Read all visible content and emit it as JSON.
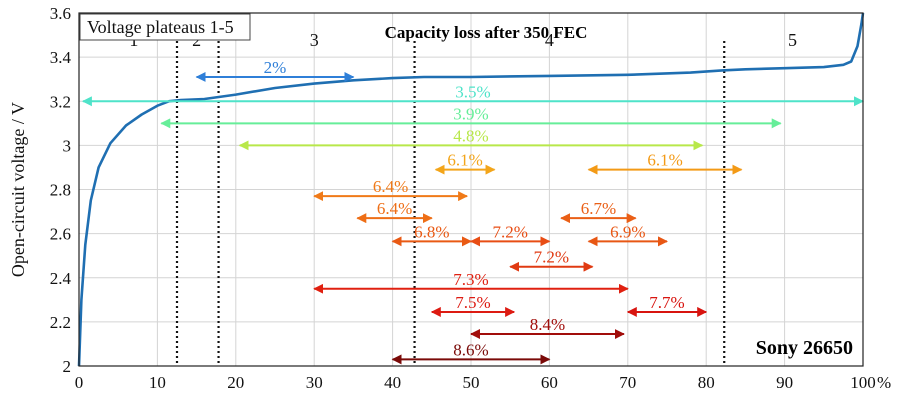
{
  "chart_data": {
    "type": "line",
    "title": "Capacity loss after 350 FEC",
    "ylabel": "Open-circuit voltage / V",
    "x_unit_label": "%",
    "xlim": [
      0,
      100
    ],
    "ylim": [
      2.0,
      3.6
    ],
    "grid": true,
    "x_ticks": [
      "0",
      "10",
      "20",
      "30",
      "40",
      "50",
      "60",
      "70",
      "80",
      "90",
      "100"
    ],
    "y_ticks": [
      "2",
      "2.2",
      "2.4",
      "2.6",
      "2.8",
      "3",
      "3.2",
      "3.4",
      "3.6"
    ],
    "legend_box_text": "Voltage plateaus 1-5",
    "annotation": "Sony 26650",
    "curve_color": "#1f6fb2",
    "curve": {
      "x": [
        0,
        0.3,
        0.8,
        1.5,
        2.5,
        4,
        6,
        8,
        10,
        11.5,
        13,
        16,
        20,
        25,
        30,
        35,
        40,
        44,
        50,
        60,
        70,
        78,
        82,
        85,
        90,
        95,
        97.5,
        98.5,
        99.3,
        99.8,
        100
      ],
      "y": [
        2.0,
        2.3,
        2.55,
        2.75,
        2.9,
        3.01,
        3.09,
        3.14,
        3.18,
        3.2,
        3.205,
        3.21,
        3.23,
        3.26,
        3.28,
        3.295,
        3.305,
        3.31,
        3.31,
        3.315,
        3.32,
        3.33,
        3.34,
        3.345,
        3.35,
        3.355,
        3.365,
        3.38,
        3.45,
        3.55,
        3.6
      ]
    },
    "plateau_boundaries": [
      12.5,
      17.8,
      42.8,
      82.3
    ],
    "plateau_labels": [
      {
        "label": "1",
        "x": 7,
        "y": 3.45
      },
      {
        "label": "2",
        "x": 15,
        "y": 3.45
      },
      {
        "label": "3",
        "x": 30,
        "y": 3.45
      },
      {
        "label": "4",
        "x": 60,
        "y": 3.45
      },
      {
        "label": "5",
        "x": 91,
        "y": 3.45
      }
    ],
    "capacity_loss_arrows": [
      {
        "label": "2%",
        "x1": 15,
        "x2": 35,
        "y": 3.31,
        "color": "#2f7fd8"
      },
      {
        "label": "3.5%",
        "x1": 0.5,
        "x2": 100,
        "y": 3.2,
        "color": "#4fe3c9"
      },
      {
        "label": "3.9%",
        "x1": 10.5,
        "x2": 89.5,
        "y": 3.1,
        "color": "#66ee99"
      },
      {
        "label": "4.8%",
        "x1": 20.5,
        "x2": 79.5,
        "y": 3.0,
        "color": "#b8e84a"
      },
      {
        "label": "6.1%",
        "x1": 45.5,
        "x2": 53,
        "y": 2.89,
        "color": "#f3a51a"
      },
      {
        "label": "6.1%",
        "x1": 65,
        "x2": 84.5,
        "y": 2.89,
        "color": "#f39a16"
      },
      {
        "label": "6.4%",
        "x1": 30,
        "x2": 49.5,
        "y": 2.77,
        "color": "#f07a18"
      },
      {
        "label": "6.4%",
        "x1": 35.5,
        "x2": 45,
        "y": 2.67,
        "color": "#ee6e16"
      },
      {
        "label": "6.7%",
        "x1": 61.5,
        "x2": 71,
        "y": 2.67,
        "color": "#ea5f16"
      },
      {
        "label": "6.8%",
        "x1": 40,
        "x2": 50,
        "y": 2.565,
        "color": "#e95a14"
      },
      {
        "label": "7.2%",
        "x1": 50,
        "x2": 60,
        "y": 2.565,
        "color": "#e84d14"
      },
      {
        "label": "6.9%",
        "x1": 65,
        "x2": 75,
        "y": 2.565,
        "color": "#e85714"
      },
      {
        "label": "7.2%",
        "x1": 55,
        "x2": 65.5,
        "y": 2.45,
        "color": "#e03a12"
      },
      {
        "label": "7.3%",
        "x1": 30,
        "x2": 70,
        "y": 2.35,
        "color": "#e02010"
      },
      {
        "label": "7.5%",
        "x1": 45,
        "x2": 55.5,
        "y": 2.245,
        "color": "#dd1b12"
      },
      {
        "label": "7.7%",
        "x1": 70,
        "x2": 80,
        "y": 2.245,
        "color": "#d8140f"
      },
      {
        "label": "8.4%",
        "x1": 50,
        "x2": 69.5,
        "y": 2.145,
        "color": "#a10d0a"
      },
      {
        "label": "8.6%",
        "x1": 40,
        "x2": 60,
        "y": 2.03,
        "color": "#7a0a08"
      }
    ]
  }
}
